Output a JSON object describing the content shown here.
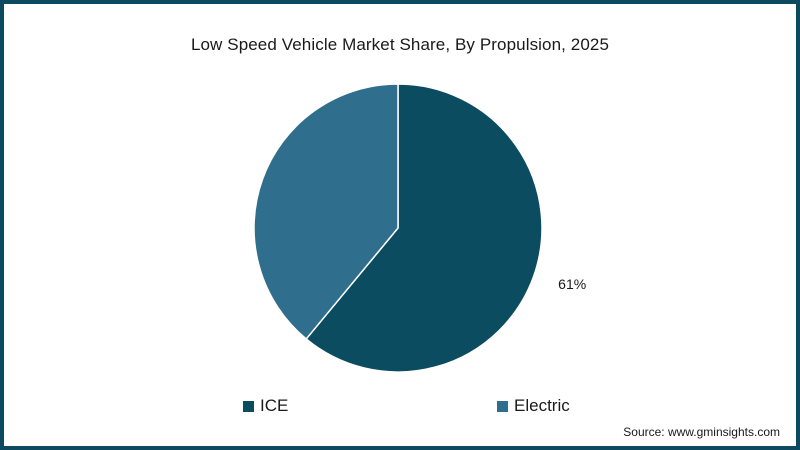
{
  "chart_data": {
    "type": "pie",
    "title": "Low Speed Vehicle Market Share, By Propulsion, 2025",
    "categories": [
      "ICE",
      "Electric"
    ],
    "values": [
      61,
      39
    ],
    "data_labels": [
      "61%",
      ""
    ],
    "colors": [
      "#0b4c61",
      "#2f6e8c"
    ],
    "legend_position": "bottom"
  },
  "legend": {
    "items": [
      {
        "label": "ICE",
        "color": "#0b4c61"
      },
      {
        "label": "Electric",
        "color": "#2f6e8c"
      }
    ]
  },
  "footer": {
    "source": "Source: www.gminsights.com"
  },
  "colors": {
    "frame": "#0d4a5f",
    "text": "#1a1a1a"
  }
}
